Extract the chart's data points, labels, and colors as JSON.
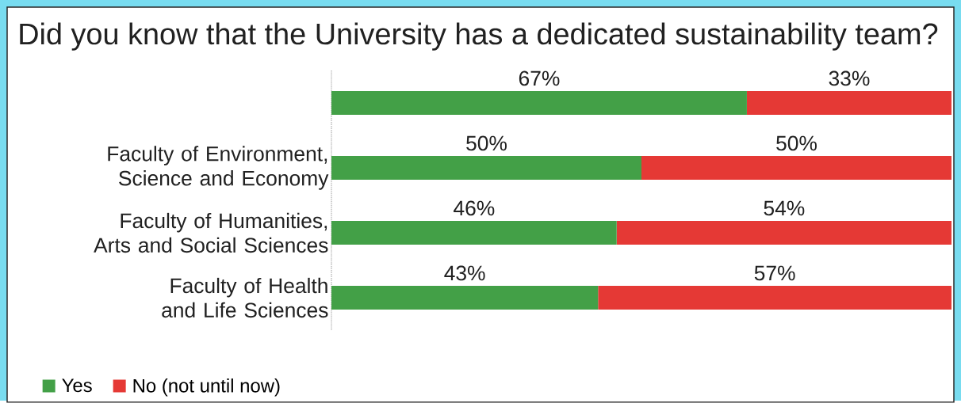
{
  "chart_data": {
    "type": "bar",
    "orientation": "horizontal",
    "stacked": true,
    "title": "Did you know that the University has a dedicated sustainability team?",
    "categories": [
      null,
      "Faculty of Environment, Science and Economy",
      "Faculty of Humanities, Arts and Social Sciences",
      "Faculty of Health and Life Sciences"
    ],
    "series": [
      {
        "name": "Yes",
        "color": "#43a047",
        "values": [
          67,
          50,
          46,
          43
        ],
        "value_labels": [
          "67%",
          "50%",
          "46%",
          "43%"
        ]
      },
      {
        "name": "No (not until now)",
        "color": "#e53935",
        "values": [
          33,
          50,
          54,
          57
        ],
        "value_labels": [
          "33%",
          "50%",
          "54%",
          "57%"
        ]
      }
    ],
    "legend": "bottom left"
  }
}
